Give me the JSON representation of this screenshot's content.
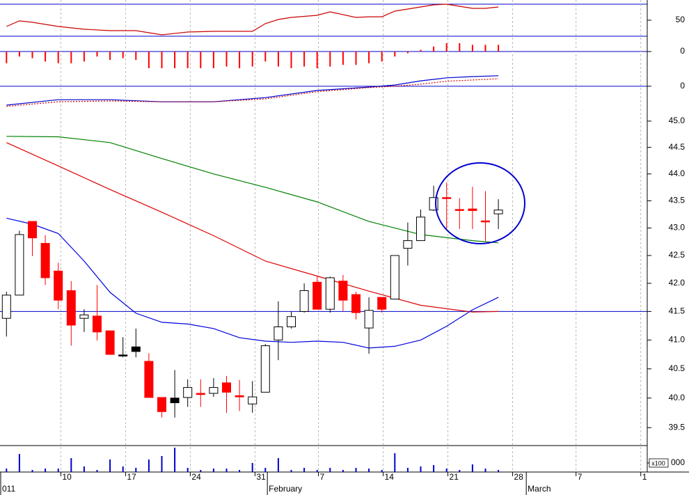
{
  "chart_data": [
    {
      "type": "line",
      "ylim": [
        30,
        70
      ],
      "yticks": [
        50
      ],
      "levels": [
        30,
        70
      ],
      "level_color": "#0000cc",
      "series": [
        {
          "color": "#cc0000",
          "x": [
            0,
            1,
            2,
            4,
            6,
            8,
            10,
            12,
            14,
            16,
            18,
            19,
            20,
            21,
            22,
            24,
            25,
            27,
            28,
            29,
            30,
            31,
            32,
            33,
            34,
            35,
            36,
            37,
            38
          ],
          "values": [
            42.2,
            49.1,
            47.4,
            42.2,
            38.7,
            37.0,
            37.0,
            31.7,
            35.2,
            36.1,
            36.1,
            36.1,
            45.7,
            50.9,
            53.5,
            56.1,
            60.4,
            53.5,
            54.3,
            54.3,
            61.3,
            63.9,
            66.5,
            69.1,
            70.0,
            67.4,
            64.8,
            64.8,
            66.5
          ]
        }
      ]
    },
    {
      "type": "bar",
      "color": "#ff0000",
      "ylim": [
        -1,
        0.5
      ],
      "yticks": [
        0
      ],
      "grid": true,
      "grid_color": "#0000cc",
      "x": [
        0,
        1,
        2,
        3,
        4,
        5,
        6,
        7,
        8,
        9,
        10,
        11,
        12,
        13,
        14,
        15,
        16,
        17,
        18,
        19,
        20,
        21,
        22,
        23,
        24,
        25,
        26,
        27,
        28,
        29,
        30,
        31,
        32,
        33,
        34,
        35,
        36,
        37,
        38
      ],
      "values": [
        -0.7,
        -0.3,
        -0.4,
        -0.6,
        -0.7,
        -0.7,
        -0.6,
        -0.3,
        -0.5,
        -0.4,
        -0.5,
        -1.0,
        -1.0,
        -1.0,
        -1.0,
        -1.0,
        -1.0,
        -0.9,
        -1.0,
        -0.9,
        -0.6,
        -0.9,
        -1.0,
        -0.9,
        -1.0,
        -0.9,
        -0.8,
        -0.8,
        -0.7,
        -0.6,
        -0.3,
        -0.1,
        0.1,
        0.3,
        0.5,
        0.5,
        0.4,
        0.4,
        0.4
      ]
    },
    {
      "type": "line",
      "ylim": [
        -0.5,
        0.43
      ],
      "yticks": [
        0
      ],
      "grid": true,
      "grid_color": "#0000cc",
      "series": [
        {
          "color": "#0000cc",
          "x": [
            0,
            4,
            8,
            12,
            16,
            20,
            24,
            28,
            30,
            32,
            34,
            36,
            38
          ],
          "values": [
            -0.45,
            -0.32,
            -0.32,
            -0.37,
            -0.37,
            -0.27,
            -0.1,
            -0.02,
            0.03,
            0.13,
            0.2,
            0.23,
            0.25
          ]
        },
        {
          "color": "#cc0000",
          "dash": true,
          "x": [
            0,
            4,
            8,
            12,
            16,
            20,
            24,
            28,
            30,
            32,
            34,
            36,
            38
          ],
          "values": [
            -0.48,
            -0.37,
            -0.35,
            -0.37,
            -0.37,
            -0.3,
            -0.13,
            -0.03,
            0,
            0.05,
            0.12,
            0.15,
            0.18
          ]
        }
      ]
    },
    {
      "type": "candlestick",
      "log": true,
      "ylim": [
        39.2,
        45.32
      ],
      "yticks": [
        {
          "value": 45,
          "label": "45.0"
        },
        44.5,
        {
          "value": 44,
          "label": "44.0"
        },
        43.5,
        {
          "value": 43,
          "label": "43.0"
        },
        42.5,
        {
          "value": 42,
          "label": "42.0"
        },
        41.5,
        {
          "value": 41,
          "label": "41.0"
        },
        40.5,
        {
          "value": 40,
          "label": "40.0"
        },
        39.5
      ],
      "x": [
        0,
        1,
        2,
        3,
        4,
        5,
        6,
        7,
        8,
        9,
        10,
        11,
        12,
        13,
        14,
        15,
        16,
        17,
        18,
        19,
        20,
        21,
        22,
        23,
        24,
        25,
        26,
        27,
        28,
        29,
        30,
        31,
        32,
        33,
        34,
        35,
        36,
        37,
        38
      ],
      "open": [
        41.38,
        41.79,
        43.12,
        42.72,
        42.22,
        41.87,
        41.38,
        41.42,
        41.16,
        40.74,
        40.88,
        40.63,
        40.01,
        40.0,
        40.01,
        40.08,
        40.08,
        40.26,
        40.04,
        39.9,
        40.1,
        41.0,
        41.23,
        41.5,
        42.02,
        41.54,
        42.04,
        41.8,
        41.21,
        41.75,
        41.72,
        42.63,
        42.77,
        43.33,
        43.56,
        43.34,
        43.35,
        43.13,
        43.26
      ],
      "high": [
        41.85,
        42.95,
        43.12,
        42.87,
        42.37,
        42.04,
        41.54,
        41.97,
        41.16,
        41.05,
        41.2,
        40.77,
        40.01,
        40.48,
        40.32,
        40.32,
        40.34,
        40.38,
        40.31,
        40.29,
        40.93,
        41.68,
        41.5,
        42.0,
        42.12,
        42.12,
        42.15,
        41.85,
        41.75,
        41.75,
        42.5,
        43.1,
        43.34,
        43.78,
        43.84,
        43.55,
        43.76,
        43.68,
        43.53
      ],
      "low": [
        41.06,
        41.79,
        42.49,
        41.97,
        41.54,
        40.9,
        41.14,
        40.99,
        40.74,
        40.7,
        40.7,
        40.01,
        39.67,
        39.67,
        39.85,
        39.85,
        40.02,
        39.75,
        39.78,
        39.75,
        40.1,
        40.65,
        41.2,
        41.48,
        41.54,
        41.48,
        41.51,
        41.36,
        40.76,
        41.48,
        41.72,
        42.32,
        42.77,
        43.31,
        42.98,
        42.98,
        42.98,
        42.76,
        42.98
      ],
      "close": [
        41.79,
        42.88,
        42.82,
        42.1,
        41.7,
        41.26,
        41.44,
        41.14,
        40.75,
        40.73,
        40.8,
        40.01,
        39.77,
        39.92,
        40.18,
        40.06,
        40.18,
        40.1,
        40.02,
        40.02,
        40.9,
        41.23,
        41.41,
        41.87,
        41.54,
        42.1,
        41.7,
        41.48,
        41.52,
        41.54,
        42.5,
        42.77,
        43.2,
        43.56,
        43.55,
        43.33,
        43.32,
        43.12,
        43.33
      ],
      "colors": [
        "#ffffff",
        "#ffffff",
        "#ff0000",
        "#ff0000",
        "#ff0000",
        "#ff0000",
        "#ffffff",
        "#ff0000",
        "#ff0000",
        "#000000",
        "#000000",
        "#ff0000",
        "#ff0000",
        "#000000",
        "#ffffff",
        "#ff0000",
        "#ffffff",
        "#ff0000",
        "#ff0000",
        "#ffffff",
        "#ffffff",
        "#ffffff",
        "#ffffff",
        "#ffffff",
        "#ff0000",
        "#ffffff",
        "#ff0000",
        "#ff0000",
        "#ffffff",
        "#ff0000",
        "#ffffff",
        "#ffffff",
        "#ffffff",
        "#ffffff",
        "#ff0000",
        "#ff0000",
        "#ff0000",
        "#ff0000",
        "#ffffff"
      ],
      "hline": 41.5,
      "hline_color": "#0000cc",
      "series": [
        {
          "color": "#008000",
          "x": [
            0,
            4,
            8,
            12,
            16,
            20,
            24,
            28,
            32,
            36,
            38
          ],
          "values": [
            44.71,
            44.7,
            44.59,
            44.29,
            44.0,
            43.75,
            43.48,
            43.12,
            42.88,
            42.77,
            42.73
          ]
        },
        {
          "color": "#dd0000",
          "x": [
            0,
            4,
            8,
            12,
            16,
            20,
            24,
            28,
            32,
            36,
            38
          ],
          "values": [
            44.59,
            44.15,
            43.71,
            43.29,
            42.86,
            42.4,
            42.13,
            41.86,
            41.61,
            41.49,
            41.5
          ]
        },
        {
          "color": "#0000dd",
          "x": [
            0,
            2,
            4,
            6,
            8,
            10,
            12,
            14,
            16,
            18,
            20,
            22,
            24,
            26,
            28,
            30,
            32,
            34,
            36,
            38
          ],
          "values": [
            43.18,
            43.07,
            42.9,
            42.4,
            41.84,
            41.47,
            41.31,
            41.28,
            41.2,
            41.04,
            40.98,
            40.96,
            40.98,
            40.96,
            40.86,
            40.89,
            41.0,
            41.24,
            41.53,
            41.75
          ]
        }
      ]
    },
    {
      "type": "bar",
      "color": "#0000cc",
      "ylim": [
        0,
        38
      ],
      "yticks": [
        {
          "value": 13,
          "label": "000"
        }
      ],
      "y_unit": "x100",
      "xlim": [
        -0.5,
        49.5
      ],
      "xticks": [
        {
          "value": 4.2,
          "label": "10"
        },
        {
          "value": 9.2,
          "label": "17"
        },
        {
          "value": 14.2,
          "label": "24"
        },
        {
          "value": 19.2,
          "label": "31"
        },
        {
          "value": 24.1,
          "label": "7"
        },
        {
          "value": 29.1,
          "label": "14"
        },
        {
          "value": 34.1,
          "label": "21"
        },
        {
          "value": 39.1,
          "label": "28"
        },
        {
          "value": 44.0,
          "label": "7"
        },
        {
          "value": 49.0,
          "label": "1"
        }
      ],
      "month_labels": [
        {
          "value": -0.5,
          "label": "011"
        },
        {
          "value": 20.1,
          "label": "February"
        },
        {
          "value": 40.1,
          "label": "March"
        }
      ],
      "x": [
        0,
        1,
        2,
        3,
        4,
        5,
        6,
        7,
        8,
        9,
        10,
        11,
        12,
        13,
        14,
        15,
        16,
        17,
        18,
        19,
        20,
        21,
        22,
        23,
        24,
        25,
        26,
        27,
        28,
        29,
        30,
        31,
        32,
        33,
        34,
        35,
        36,
        37,
        38
      ],
      "values": [
        5,
        26,
        3,
        5,
        5,
        20,
        8,
        3,
        18,
        8,
        6,
        18,
        23,
        35,
        6,
        3,
        5,
        5,
        3,
        13,
        6,
        20,
        3,
        6,
        3,
        6,
        3,
        6,
        5,
        3,
        27,
        6,
        8,
        10,
        5,
        3,
        11,
        5,
        3
      ]
    }
  ]
}
